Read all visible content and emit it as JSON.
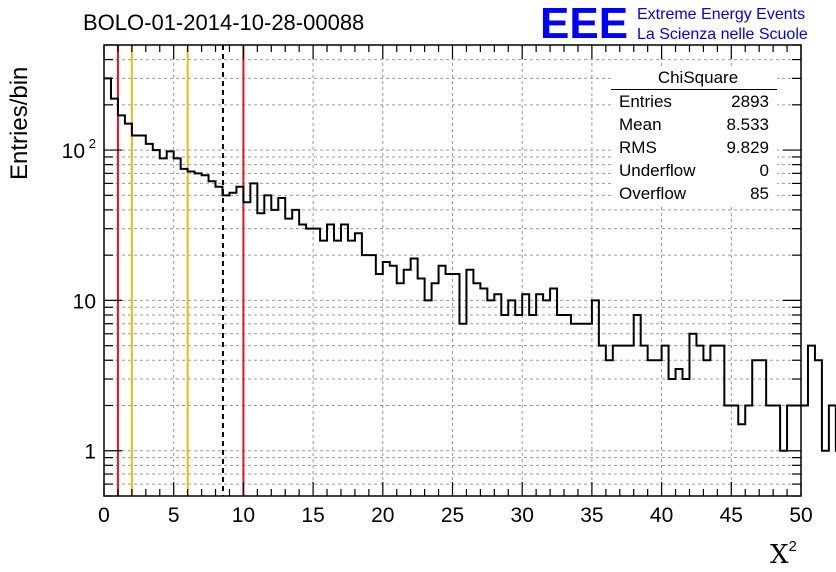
{
  "title": "BOLO-01-2014-10-28-00088",
  "logo": {
    "mark": "EEE",
    "line1": "Extreme Energy Events",
    "line2": "La Scienza nelle Scuole",
    "color": "#0000ff"
  },
  "stats": {
    "title": "ChiSquare",
    "rows": [
      {
        "key": "Entries",
        "value": "2893"
      },
      {
        "key": "Mean",
        "value": "8.533"
      },
      {
        "key": "RMS",
        "value": "9.829"
      },
      {
        "key": "Underflow",
        "value": "0"
      },
      {
        "key": "Overflow",
        "value": "85"
      }
    ]
  },
  "chart_data": {
    "type": "histogram",
    "title": "BOLO-01-2014-10-28-00088",
    "xlabel": "X",
    "xlabel_superscript": "2",
    "ylabel": "Entries/bin",
    "xlim": [
      0,
      50
    ],
    "ylim": [
      0.5,
      500
    ],
    "y_scale": "log",
    "grid": true,
    "bin_width": 0.5,
    "x_ticks": [
      "0",
      "5",
      "10",
      "15",
      "20",
      "25",
      "30",
      "35",
      "40",
      "45",
      "50"
    ],
    "y_ticks": [
      {
        "value": 1,
        "label": "1",
        "sup": ""
      },
      {
        "value": 10,
        "label": "10",
        "sup": ""
      },
      {
        "value": 100,
        "label": "10",
        "sup": "2"
      }
    ],
    "values": [
      300,
      220,
      170,
      150,
      125,
      125,
      110,
      100,
      88,
      98,
      88,
      75,
      72,
      70,
      68,
      62,
      57,
      50,
      52,
      57,
      45,
      60,
      38,
      50,
      40,
      48,
      35,
      40,
      32,
      30,
      30,
      25,
      32,
      25,
      32,
      25,
      28,
      20,
      20,
      15,
      18,
      17,
      13,
      16,
      19,
      14,
      10,
      13,
      17,
      15,
      15,
      7,
      16,
      13,
      12,
      10,
      11,
      8,
      10,
      8,
      11,
      8,
      11,
      10,
      12,
      8,
      8,
      7,
      7,
      7,
      10,
      5,
      4,
      5,
      5,
      5,
      8,
      5,
      4,
      4,
      5,
      3,
      3.5,
      3,
      6,
      5,
      4,
      5,
      5,
      2,
      2,
      1.5,
      2,
      4,
      4,
      2,
      2,
      1,
      2,
      2,
      2,
      5,
      4,
      1,
      2,
      1,
      2,
      1,
      1,
      4,
      3,
      4,
      2,
      1,
      1,
      5,
      4,
      2,
      1,
      2,
      5,
      4,
      2.5,
      2.5,
      4,
      2,
      3,
      3,
      0.4,
      0.4,
      0.4,
      0.4,
      3,
      3,
      3,
      0.4,
      0.4,
      4,
      4,
      2,
      2,
      5,
      4,
      3,
      4,
      3,
      4,
      5
    ],
    "vertical_lines": [
      {
        "x": 1.0,
        "color": "#e8141c",
        "style": "solid"
      },
      {
        "x": 2.0,
        "color": "#f2b90c",
        "style": "solid"
      },
      {
        "x": 6.0,
        "color": "#f2b90c",
        "style": "solid"
      },
      {
        "x": 8.533,
        "color": "#000000",
        "style": "dashed"
      },
      {
        "x": 10.0,
        "color": "#e8141c",
        "style": "solid"
      }
    ]
  }
}
